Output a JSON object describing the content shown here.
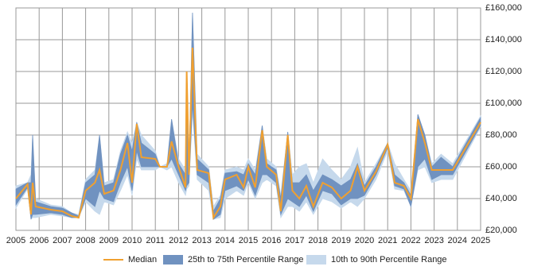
{
  "chart_data": {
    "type": "line",
    "x": [
      2005.0,
      2005.5,
      2005.65,
      2005.72,
      2005.85,
      2006.5,
      2007.0,
      2007.4,
      2007.7,
      2008.0,
      2008.4,
      2008.6,
      2008.8,
      2009.2,
      2009.5,
      2009.8,
      2010.0,
      2010.2,
      2010.4,
      2011.0,
      2011.2,
      2011.5,
      2011.7,
      2012.0,
      2012.3,
      2012.35,
      2012.45,
      2012.6,
      2012.8,
      2013.3,
      2013.5,
      2013.8,
      2014.0,
      2014.5,
      2014.8,
      2015.0,
      2015.3,
      2015.6,
      2015.8,
      2016.2,
      2016.4,
      2016.7,
      2016.9,
      2017.2,
      2017.5,
      2017.8,
      2018.2,
      2018.6,
      2019.0,
      2019.4,
      2019.7,
      2020.0,
      2020.5,
      2021.0,
      2021.3,
      2021.7,
      2022.0,
      2022.3,
      2022.6,
      2022.9,
      2023.3,
      2023.8,
      2025.0
    ],
    "series": [
      {
        "name": "Median",
        "color": "#f0a030",
        "values": [
          40000,
          49000,
          30000,
          50000,
          35000,
          33000,
          32000,
          29000,
          28000,
          45000,
          50000,
          58000,
          43000,
          45000,
          58000,
          75000,
          50000,
          87000,
          66000,
          65000,
          60000,
          60000,
          76000,
          60000,
          47000,
          120000,
          55000,
          135000,
          58000,
          56000,
          28000,
          35000,
          52000,
          55000,
          47000,
          60000,
          47000,
          83000,
          60000,
          55000,
          32000,
          80000,
          45000,
          40000,
          48000,
          35000,
          50000,
          47000,
          40000,
          45000,
          60000,
          45000,
          57000,
          74000,
          50000,
          48000,
          40000,
          90000,
          75000,
          58000,
          58000,
          58000,
          88000
        ]
      },
      {
        "name": "25th to 75th Percentile Range",
        "color": "#7092c0",
        "low": [
          36000,
          47000,
          27000,
          30000,
          30000,
          31000,
          30000,
          28000,
          28000,
          40000,
          35000,
          45000,
          40000,
          38000,
          50000,
          60000,
          45000,
          70000,
          60000,
          60000,
          60000,
          60000,
          65000,
          55000,
          45000,
          48000,
          50000,
          100000,
          55000,
          50000,
          27000,
          30000,
          45000,
          48000,
          45000,
          52000,
          42000,
          55000,
          55000,
          50000,
          30000,
          40000,
          38000,
          35000,
          42000,
          32000,
          45000,
          43000,
          36000,
          40000,
          40000,
          42000,
          55000,
          72000,
          48000,
          46000,
          35000,
          60000,
          65000,
          52000,
          55000,
          55000,
          86000
        ],
        "high": [
          46000,
          50000,
          50000,
          80000,
          38000,
          35000,
          34000,
          31000,
          29000,
          50000,
          55000,
          80000,
          48000,
          50000,
          68000,
          80000,
          70000,
          88000,
          75000,
          68000,
          60000,
          60000,
          90000,
          62000,
          55000,
          120000,
          60000,
          157000,
          65000,
          58000,
          32000,
          40000,
          56000,
          57000,
          55000,
          62000,
          55000,
          86000,
          62000,
          58000,
          40000,
          82000,
          50000,
          50000,
          55000,
          45000,
          55000,
          52000,
          48000,
          52000,
          62000,
          48000,
          60000,
          75000,
          55000,
          50000,
          42000,
          93000,
          80000,
          60000,
          66000,
          60000,
          91000
        ]
      },
      {
        "name": "10th to 90th Percentile Range",
        "color": "#c6d9ec",
        "low": [
          34000,
          46000,
          27000,
          28000,
          28000,
          30000,
          29000,
          28000,
          28000,
          38000,
          32000,
          30000,
          38000,
          36000,
          45000,
          55000,
          42000,
          65000,
          58000,
          58000,
          60000,
          58000,
          60000,
          50000,
          42000,
          46000,
          48000,
          95000,
          52000,
          45000,
          27000,
          28000,
          40000,
          45000,
          42000,
          50000,
          40000,
          50000,
          52000,
          48000,
          28000,
          35000,
          35000,
          32000,
          38000,
          30000,
          40000,
          38000,
          34000,
          38000,
          35000,
          40000,
          52000,
          70000,
          46000,
          45000,
          35000,
          58000,
          60000,
          50000,
          52000,
          52000,
          85000
        ],
        "high": [
          48000,
          50000,
          55000,
          80000,
          40000,
          36000,
          35000,
          31000,
          30000,
          52000,
          58000,
          80000,
          50000,
          52000,
          70000,
          82000,
          75000,
          88000,
          80000,
          70000,
          60000,
          62000,
          90000,
          65000,
          58000,
          120000,
          62000,
          157000,
          68000,
          60000,
          35000,
          42000,
          58000,
          60000,
          58000,
          65000,
          58000,
          86000,
          65000,
          60000,
          42000,
          82000,
          55000,
          60000,
          62000,
          50000,
          65000,
          58000,
          52000,
          60000,
          72000,
          50000,
          62000,
          75000,
          62000,
          52000,
          45000,
          93000,
          80000,
          62000,
          68000,
          62000,
          92000
        ]
      }
    ],
    "xlim": [
      2005,
      2025
    ],
    "xticks": [
      2005,
      2006,
      2007,
      2008,
      2009,
      2010,
      2011,
      2012,
      2013,
      2014,
      2015,
      2016,
      2017,
      2018,
      2019,
      2020,
      2021,
      2022,
      2023,
      2024,
      2025
    ],
    "ylim": [
      20000,
      160000
    ],
    "yticks": [
      {
        "value": 20000,
        "label": "£20,000"
      },
      {
        "value": 40000,
        "label": "£40,000"
      },
      {
        "value": 60000,
        "label": "£60,000"
      },
      {
        "value": 80000,
        "label": "£80,000"
      },
      {
        "value": 100000,
        "label": "£100,000"
      },
      {
        "value": 120000,
        "label": "£120,000"
      },
      {
        "value": 140000,
        "label": "£140,000"
      },
      {
        "value": 160000,
        "label": "£160,000"
      }
    ],
    "grid": true,
    "legend": "bottom"
  }
}
